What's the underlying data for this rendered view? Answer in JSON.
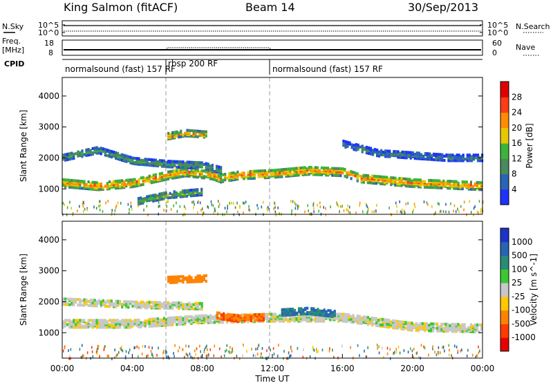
{
  "header": {
    "station": "King Salmon (fitACF)",
    "beam": "Beam 14",
    "date": "30/Sep/2013"
  },
  "top_panels": {
    "nsky_label": "N.Sky",
    "nsearch_label": "N.Search",
    "noise_ticks_left": [
      "10^5",
      "10^0"
    ],
    "noise_ticks_right": [
      "10^5",
      "10^0"
    ],
    "freq_label_1": "Freq.",
    "freq_label_2": "[MHz]",
    "freq_ticks": [
      "18",
      "8"
    ],
    "nave_label": "Nave",
    "nave_ticks": [
      "60",
      "0"
    ],
    "cpid_label": "CPID",
    "cpid_segments": [
      {
        "label": "normalsound (fast) 157 RF",
        "start_h": 0,
        "end_h": 6
      },
      {
        "label": "rbsp 200 RF",
        "start_h": 6,
        "end_h": 12
      },
      {
        "label": "normalsound (fast) 157 RF",
        "start_h": 12,
        "end_h": 24
      }
    ]
  },
  "chart_data": [
    {
      "type": "heatmap",
      "panel": "power",
      "ylabel": "Slant Range [km]",
      "xlabel": "",
      "ylim": [
        180,
        4600
      ],
      "xlim": [
        0,
        24
      ],
      "yticks": [
        1000,
        2000,
        3000,
        4000
      ],
      "colorbar_label": "Power [dB]",
      "colorbar_ticks": [
        "4",
        "8",
        "12",
        "16",
        "20",
        "24",
        "28"
      ],
      "colorbar_colors": [
        "#1e32ff",
        "#2a64b4",
        "#4a8a5a",
        "#3cb43c",
        "#e6c800",
        "#ff8c00",
        "#ff3c14",
        "#e00000"
      ],
      "echo_bands": [
        {
          "desc": "main band",
          "points": [
            [
              0,
              1250
            ],
            [
              2,
              1150
            ],
            [
              4,
              1250
            ],
            [
              6,
              1500
            ],
            [
              7,
              1600
            ],
            [
              8.5,
              1500
            ],
            [
              9,
              1400
            ],
            [
              10,
              1500
            ],
            [
              12,
              1550
            ],
            [
              14,
              1650
            ],
            [
              16,
              1600
            ],
            [
              17,
              1400
            ],
            [
              20,
              1250
            ],
            [
              24,
              1150
            ]
          ],
          "power_dB": 22
        },
        {
          "desc": "upper band",
          "points": [
            [
              0,
              2050
            ],
            [
              2,
              2300
            ],
            [
              4,
              1950
            ],
            [
              6,
              1850
            ],
            [
              8,
              1800
            ],
            [
              9,
              1650
            ]
          ],
          "power_dB": 12
        },
        {
          "desc": "high band",
          "points": [
            [
              6,
              2750
            ],
            [
              7,
              2850
            ],
            [
              8.2,
              2800
            ]
          ],
          "power_dB": 22
        },
        {
          "desc": "low band",
          "points": [
            [
              4.3,
              650
            ],
            [
              6,
              850
            ],
            [
              8,
              950
            ]
          ],
          "power_dB": 14
        },
        {
          "desc": "late band",
          "points": [
            [
              16,
              2500
            ],
            [
              18,
              2200
            ],
            [
              22,
              2050
            ],
            [
              24,
              2050
            ]
          ],
          "power_dB": 8
        }
      ]
    },
    {
      "type": "heatmap",
      "panel": "velocity",
      "ylabel": "Slant Range [km]",
      "xlabel": "Time UT",
      "ylim": [
        180,
        4600
      ],
      "xlim": [
        0,
        24
      ],
      "yticks": [
        1000,
        2000,
        3000,
        4000
      ],
      "xticks": [
        "00:00",
        "04:00",
        "08:00",
        "12:00",
        "16:00",
        "20:00",
        "00:00"
      ],
      "colorbar_label": "Velocity [m s^-1]",
      "colorbar_ticks": [
        "1000",
        "500",
        "100",
        "25",
        "-25",
        "-100",
        "-500",
        "-1000"
      ],
      "colorbar_colors": [
        "#1e32c8",
        "#2864b4",
        "#288c78",
        "#3cc832",
        "#c8c8c8",
        "#ffc800",
        "#ff8200",
        "#ff3c00",
        "#e60000"
      ],
      "echo_bands": [
        {
          "desc": "ground scatter",
          "points": [
            [
              0,
              1350
            ],
            [
              4,
              1350
            ],
            [
              8,
              1500
            ],
            [
              12,
              1550
            ],
            [
              16,
              1550
            ],
            [
              20,
              1250
            ],
            [
              24,
              1200
            ]
          ],
          "velocity": 0
        },
        {
          "desc": "upper gs",
          "points": [
            [
              0,
              2050
            ],
            [
              4,
              1950
            ],
            [
              8,
              1900
            ]
          ],
          "velocity": 0
        },
        {
          "desc": "high band",
          "points": [
            [
              6,
              2750
            ],
            [
              8.2,
              2800
            ]
          ],
          "velocity": -300
        },
        {
          "desc": "post-midnight flow",
          "points": [
            [
              8.8,
              1600
            ],
            [
              10,
              1500
            ],
            [
              11.5,
              1550
            ]
          ],
          "velocity": -500
        },
        {
          "desc": "noon flow",
          "points": [
            [
              12.5,
              1700
            ],
            [
              14,
              1750
            ],
            [
              15.5,
              1650
            ]
          ],
          "velocity": 500
        }
      ]
    }
  ]
}
